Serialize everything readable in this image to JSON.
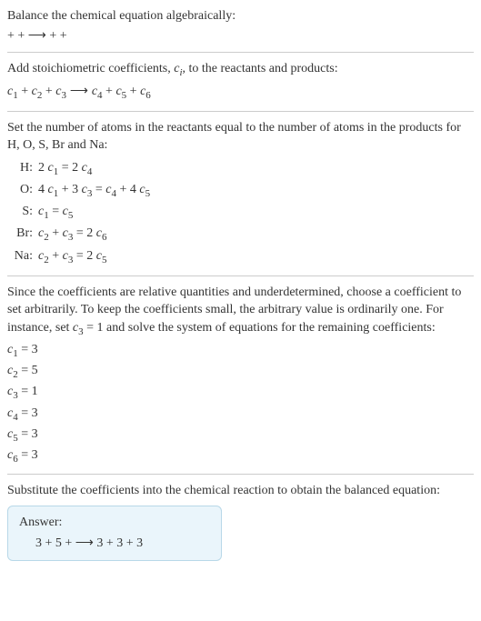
{
  "intro": {
    "line1": "Balance the chemical equation algebraically:",
    "eq": " +  +  ⟶  +  + "
  },
  "stoich": {
    "line1_prefix": "Add stoichiometric coefficients, ",
    "line1_var": "c",
    "line1_sub": "i",
    "line1_suffix": ", to the reactants and products:",
    "eq_c1": "c",
    "eq_c1s": "1",
    "eq_c2": "c",
    "eq_c2s": "2",
    "eq_c3": "c",
    "eq_c3s": "3",
    "eq_c4": "c",
    "eq_c4s": "4",
    "eq_c5": "c",
    "eq_c5s": "5",
    "eq_c6": "c",
    "eq_c6s": "6",
    "plus": " + ",
    "arrow": " ⟶ "
  },
  "atoms": {
    "intro": "Set the number of atoms in the reactants equal to the number of atoms in the products for H, O, S, Br and Na:",
    "rows": {
      "H": {
        "label": "H:",
        "eq_pre": "2 ",
        "c1": "c",
        "c1s": "1",
        "eq_mid": " = 2 ",
        "c2": "c",
        "c2s": "4",
        "eq_post": ""
      },
      "O": {
        "label": "O:",
        "eq": "4 c₁ + 3 c₃ = c₄ + 4 c₅",
        "p1": "4 ",
        "v1": "c",
        "s1": "1",
        "p2": " + 3 ",
        "v2": "c",
        "s2": "3",
        "p3": " = ",
        "v3": "c",
        "s3": "4",
        "p4": " + 4 ",
        "v4": "c",
        "s4": "5"
      },
      "S": {
        "label": "S:",
        "v1": "c",
        "s1": "1",
        "mid": " = ",
        "v2": "c",
        "s2": "5"
      },
      "Br": {
        "label": "Br:",
        "v1": "c",
        "s1": "2",
        "p2": " + ",
        "v2": "c",
        "s2": "3",
        "mid": " = 2 ",
        "v3": "c",
        "s3": "6"
      },
      "Na": {
        "label": "Na:",
        "v1": "c",
        "s1": "2",
        "p2": " + ",
        "v2": "c",
        "s2": "3",
        "mid": " = 2 ",
        "v3": "c",
        "s3": "5"
      }
    }
  },
  "choose": {
    "text_pre": "Since the coefficients are relative quantities and underdetermined, choose a coefficient to set arbitrarily. To keep the coefficients small, the arbitrary value is ordinarily one. For instance, set ",
    "var": "c",
    "sub": "3",
    "text_mid": " = 1 and solve the system of equations for the remaining coefficients:",
    "coeffs": {
      "c1": {
        "v": "c",
        "s": "1",
        "eq": " = 3"
      },
      "c2": {
        "v": "c",
        "s": "2",
        "eq": " = 5"
      },
      "c3": {
        "v": "c",
        "s": "3",
        "eq": " = 1"
      },
      "c4": {
        "v": "c",
        "s": "4",
        "eq": " = 3"
      },
      "c5": {
        "v": "c",
        "s": "5",
        "eq": " = 3"
      },
      "c6": {
        "v": "c",
        "s": "6",
        "eq": " = 3"
      }
    }
  },
  "final": {
    "intro": "Substitute the coefficients into the chemical reaction to obtain the balanced equation:",
    "answer_label": "Answer:",
    "answer_eq": "3  + 5  +  ⟶ 3  + 3  + 3 "
  }
}
